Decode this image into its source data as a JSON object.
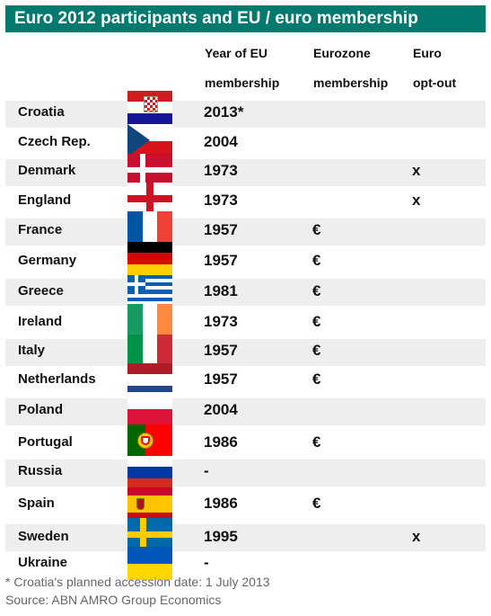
{
  "title": "Euro 2012 participants and EU / euro membership",
  "headers": {
    "year_line1": "Year of EU",
    "year_line2": "membership",
    "eurozone_line1": "Eurozone",
    "eurozone_line2": "membership",
    "optout_line1": "Euro",
    "optout_line2": "opt-out"
  },
  "rows": [
    {
      "country": "Croatia",
      "flag": "croatia-flag-icon",
      "year": "2013*",
      "eurozone": "",
      "optout": ""
    },
    {
      "country": "Czech Rep.",
      "flag": "czech-flag-icon",
      "year": "2004",
      "eurozone": "",
      "optout": ""
    },
    {
      "country": "Denmark",
      "flag": "denmark-flag-icon",
      "year": "1973",
      "eurozone": "",
      "optout": "x"
    },
    {
      "country": "England",
      "flag": "england-flag-icon",
      "year": "1973",
      "eurozone": "",
      "optout": "x"
    },
    {
      "country": "France",
      "flag": "france-flag-icon",
      "year": "1957",
      "eurozone": "€",
      "optout": ""
    },
    {
      "country": "Germany",
      "flag": "germany-flag-icon",
      "year": "1957",
      "eurozone": "€",
      "optout": ""
    },
    {
      "country": "Greece",
      "flag": "greece-flag-icon",
      "year": "1981",
      "eurozone": "€",
      "optout": ""
    },
    {
      "country": "Ireland",
      "flag": "ireland-flag-icon",
      "year": "1973",
      "eurozone": "€",
      "optout": ""
    },
    {
      "country": "Italy",
      "flag": "italy-flag-icon",
      "year": "1957",
      "eurozone": "€",
      "optout": ""
    },
    {
      "country": "Netherlands",
      "flag": "netherlands-flag-icon",
      "year": "1957",
      "eurozone": "€",
      "optout": ""
    },
    {
      "country": "Poland",
      "flag": "poland-flag-icon",
      "year": "2004",
      "eurozone": "",
      "optout": ""
    },
    {
      "country": "Portugal",
      "flag": "portugal-flag-icon",
      "year": "1986",
      "eurozone": "€",
      "optout": ""
    },
    {
      "country": "Russia",
      "flag": "russia-flag-icon",
      "year": "-",
      "eurozone": "",
      "optout": ""
    },
    {
      "country": "Spain",
      "flag": "spain-flag-icon",
      "year": "1986",
      "eurozone": "€",
      "optout": ""
    },
    {
      "country": "Sweden",
      "flag": "sweden-flag-icon",
      "year": "1995",
      "eurozone": "",
      "optout": "x"
    },
    {
      "country": "Ukraine",
      "flag": "ukraine-flag-icon",
      "year": "-",
      "eurozone": "",
      "optout": ""
    }
  ],
  "footnote": "* Croatia's planned accession date: 1 July 2013",
  "source": "Source: ABN AMRO Group Economics",
  "colors": {
    "title_bar": "#00796f",
    "row_band": "#eeeeee",
    "footer_text": "#666666"
  }
}
